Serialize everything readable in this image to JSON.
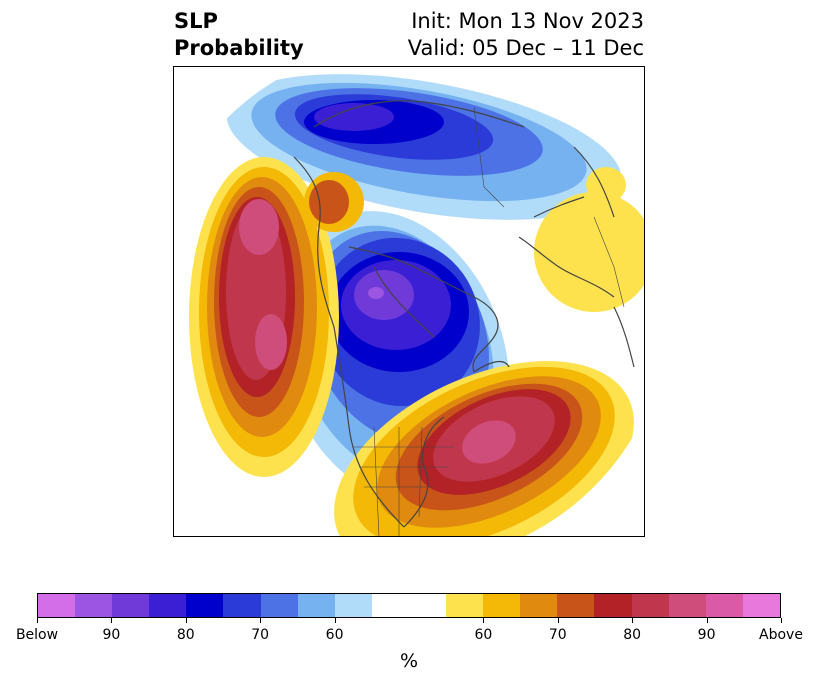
{
  "title": {
    "left_line1": "SLP",
    "left_line2": "Probability",
    "right_line1": "Init: Mon 13 Nov 2023",
    "right_line2": "Valid: 05 Dec – 11 Dec"
  },
  "colorbar": {
    "unit": "%",
    "labels": [
      "Below",
      "90",
      "80",
      "70",
      "60",
      "60",
      "70",
      "80",
      "90",
      "Above"
    ],
    "below_colors": [
      "#d36ee8",
      "#9b55e2",
      "#6f3ad8",
      "#3a1fd4",
      "#0000cc",
      "#2a3bd8",
      "#4d72e6",
      "#77b2f0",
      "#b0dcfa"
    ],
    "neutral_color": "#ffffff",
    "above_colors": [
      "#fde24e",
      "#f4b806",
      "#e08a10",
      "#c85419",
      "#b22226",
      "#c0374d",
      "#cf4d7b",
      "#db5aa8",
      "#e878dc"
    ]
  },
  "map": {
    "projection": "north polar stereographic",
    "anomalies": [
      {
        "region": "Gulf of Alaska / NE Pacific",
        "sign": "above",
        "peak": "90"
      },
      {
        "region": "Central Canada / Hudson Bay",
        "sign": "below",
        "peak": "90"
      },
      {
        "region": "Siberia / Arctic",
        "sign": "below",
        "peak": "80"
      },
      {
        "region": "Western Atlantic",
        "sign": "above",
        "peak": "90"
      },
      {
        "region": "Scandinavia / Europe",
        "sign": "above",
        "peak": "60"
      }
    ]
  }
}
